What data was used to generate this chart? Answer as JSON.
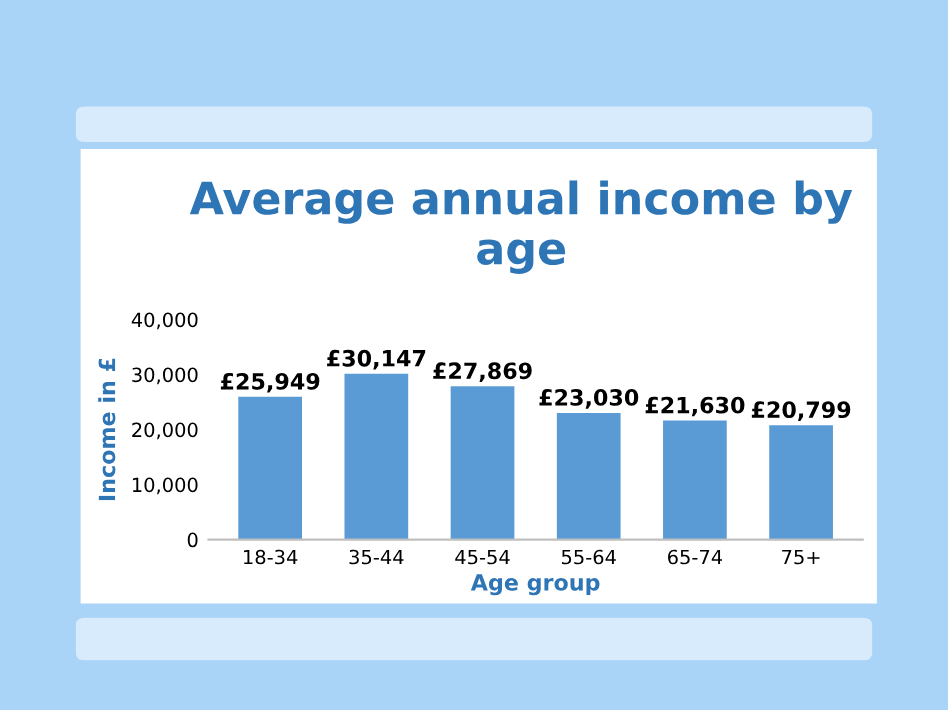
{
  "chart_data": {
    "type": "bar",
    "title": "Average annual income by age",
    "xlabel": "Age group",
    "ylabel": "Income in £",
    "categories": [
      "18-34",
      "35-44",
      "45-54",
      "55-64",
      "65-74",
      "75+"
    ],
    "values": [
      25949,
      30147,
      27869,
      23030,
      21630,
      20799
    ],
    "value_labels": [
      "£25,949",
      "£30,147",
      "£27,869",
      "£23,030",
      "£21,630",
      "£20,799"
    ],
    "color": "#5b9bd5",
    "ylim": [
      0,
      40000
    ],
    "yticks": [
      0,
      {
        "value": 10000,
        "label": "10,000"
      },
      {
        "value": 20000,
        "label": "20,000"
      },
      {
        "value": 30000,
        "label": "30,000"
      },
      {
        "value": 40000,
        "label": "40,000"
      }
    ],
    "grid": false,
    "legend": false
  }
}
